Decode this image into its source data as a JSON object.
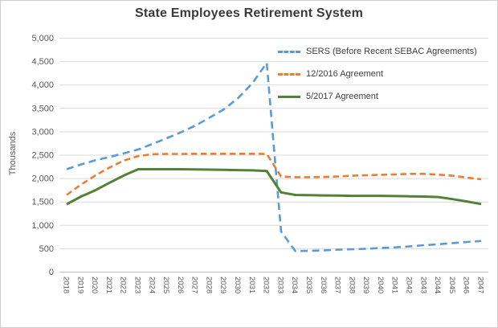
{
  "chart_data": {
    "type": "line",
    "title": "State Employees Retirement System",
    "ylabel": "Thousands",
    "xlabel": "",
    "x": [
      "2018",
      "2019",
      "2020",
      "2021",
      "2022",
      "2023",
      "2024",
      "2025",
      "2026",
      "2027",
      "2028",
      "2029",
      "2030",
      "2031",
      "2032",
      "2033",
      "2034",
      "2035",
      "2036",
      "2037",
      "2038",
      "2039",
      "2040",
      "2041",
      "2042",
      "2043",
      "2044",
      "2045",
      "2046",
      "2047"
    ],
    "series": [
      {
        "name": "SERS (Before Recent SEBAC Agreements)",
        "color": "#5B9BD5",
        "style": "dashed",
        "values": [
          2200,
          2300,
          2390,
          2460,
          2540,
          2620,
          2740,
          2860,
          2990,
          3130,
          3300,
          3480,
          3720,
          4040,
          4470,
          870,
          450,
          455,
          465,
          480,
          490,
          500,
          515,
          530,
          550,
          575,
          595,
          620,
          645,
          665
        ]
      },
      {
        "name": "12/2016 Agreement",
        "color": "#ED7D31",
        "style": "dashed",
        "values": [
          1650,
          1870,
          2065,
          2235,
          2385,
          2480,
          2520,
          2525,
          2525,
          2530,
          2530,
          2530,
          2530,
          2530,
          2525,
          2045,
          2030,
          2030,
          2035,
          2045,
          2060,
          2070,
          2080,
          2090,
          2100,
          2100,
          2085,
          2060,
          2020,
          1985
        ]
      },
      {
        "name": "5/2017 Agreement",
        "color": "#548235",
        "style": "solid",
        "values": [
          1450,
          1615,
          1750,
          1910,
          2065,
          2200,
          2200,
          2200,
          2200,
          2195,
          2190,
          2185,
          2180,
          2175,
          2160,
          1705,
          1650,
          1645,
          1640,
          1635,
          1630,
          1630,
          1630,
          1625,
          1620,
          1615,
          1605,
          1560,
          1510,
          1455
        ]
      }
    ],
    "ylim": [
      0,
      5000
    ],
    "ytick_step": 500,
    "ytick_labels": [
      "0",
      "500",
      "1,000",
      "1,500",
      "2,000",
      "2,500",
      "3,000",
      "3,500",
      "4,000",
      "4,500",
      "5,000"
    ],
    "grid": true,
    "legend_position": "top-right-inside"
  },
  "style": {
    "background": "#FFFFFF",
    "border_color": "#D0CECE",
    "grid_color": "#D9D9D9",
    "axis_color": "#BFBFBF",
    "tick_label_color": "#595959",
    "title_color": "#3A3A3A",
    "legend_text_color": "#404040"
  }
}
